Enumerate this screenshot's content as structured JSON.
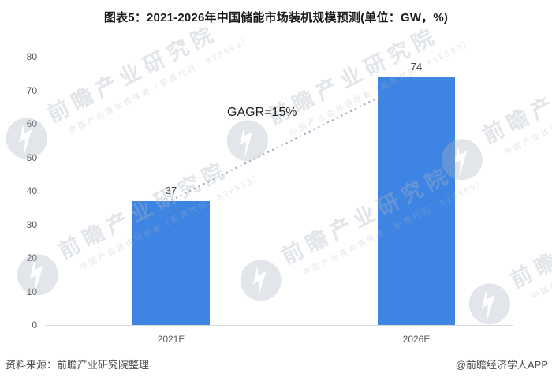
{
  "title": "图表5：2021-2026年中国储能市场装机规模预测(单位：GW，%)",
  "chart_data": {
    "type": "bar",
    "title": "图表5：2021-2026年中国储能市场装机规模预测(单位：GW，%)",
    "categories": [
      "2021E",
      "2026E"
    ],
    "values": [
      37,
      74
    ],
    "xlabel": "",
    "ylabel": "",
    "ylim": [
      0,
      80
    ],
    "yticks": [
      0,
      10,
      20,
      30,
      40,
      50,
      60,
      70,
      80
    ],
    "grid": false,
    "legend": false,
    "annotation": "GAGR=15%",
    "bar_color": "#3d84e3",
    "trendline_color": "#97a4ba",
    "axis_line_color": "#d9d9d9",
    "tick_label_color": "#595959",
    "value_label_color": "#404040"
  },
  "footer": {
    "source": "资料来源：前瞻产业研究院整理",
    "brand": "@前瞻经济学人APP"
  },
  "watermark": {
    "text": "前瞻产业研究院",
    "subtext": "中国产业咨询领导者（股票代码：839599）"
  }
}
